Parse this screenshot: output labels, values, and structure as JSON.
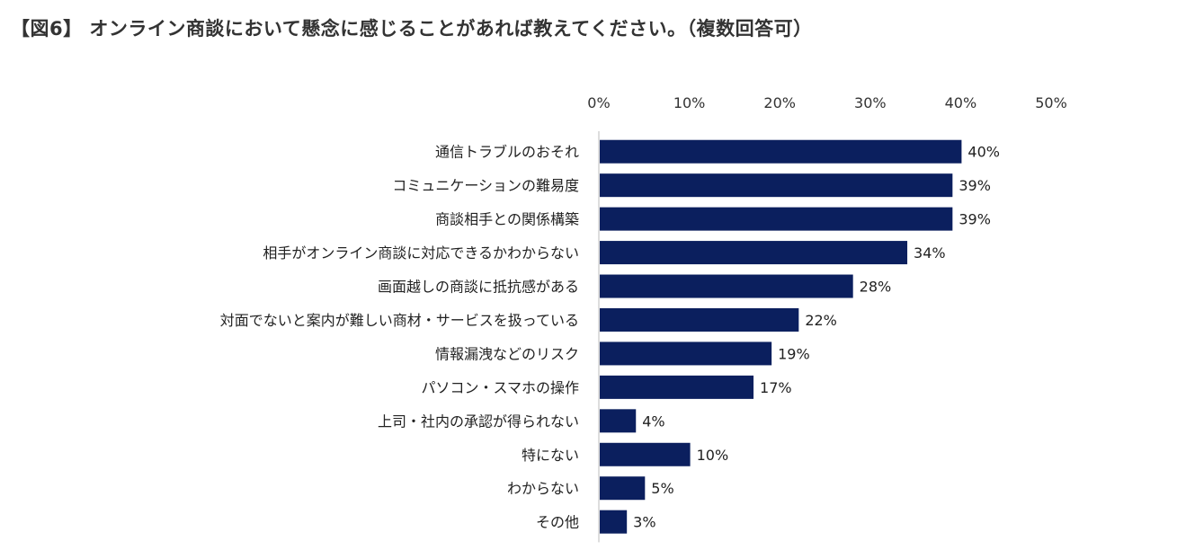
{
  "title": "【図6】 オンライン商談において懸念に感じることがあれば教えてください。（複数回答可）",
  "chart_data": {
    "type": "bar",
    "orientation": "horizontal",
    "title": "【図6】 オンライン商談において懸念に感じることがあれば教えてください。（複数回答可）",
    "categories": [
      "通信トラブルのおそれ",
      "コミュニケーションの難易度",
      "商談相手との関係構築",
      "相手がオンライン商談に対応できるかわからない",
      "画面越しの商談に抵抗感がある",
      "対面でないと案内が難しい商材・サービスを扱っている",
      "情報漏洩などのリスク",
      "パソコン・スマホの操作",
      "上司・社内の承認が得られない",
      "特にない",
      "わからない",
      "その他"
    ],
    "values": [
      40,
      39,
      39,
      34,
      28,
      22,
      19,
      17,
      4,
      10,
      5,
      3
    ],
    "data_labels": [
      "40%",
      "39%",
      "39%",
      "34%",
      "28%",
      "22%",
      "19%",
      "17%",
      "4%",
      "10%",
      "5%",
      "3%"
    ],
    "xlim": [
      0,
      50
    ],
    "x_ticks": [
      "0%",
      "10%",
      "20%",
      "30%",
      "40%",
      "50%"
    ],
    "x_axis_position": "top",
    "grid": false,
    "bar_color": "#0b1f5e"
  }
}
